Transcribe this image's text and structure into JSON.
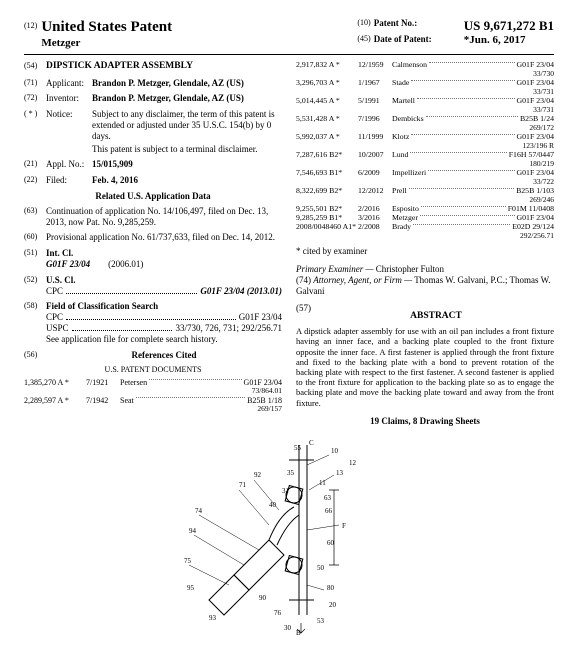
{
  "header": {
    "leftNum": "(12)",
    "title": "United States Patent",
    "name": "Metzger",
    "rNum1": "(10)",
    "rLabel1": "Patent No.:",
    "rVal1": "US 9,671,272 B1",
    "rNum2": "(45)",
    "rLabel2": "Date of Patent:",
    "rVal2": "*Jun. 6, 2017"
  },
  "left": {
    "titleNum": "(54)",
    "title": "DIPSTICK ADAPTER ASSEMBLY",
    "applicantNum": "(71)",
    "applicantLabel": "Applicant:",
    "applicantVal": "Brandon P. Metzger, Glendale, AZ (US)",
    "inventorNum": "(72)",
    "inventorLabel": "Inventor:",
    "inventorVal": "Brandon P. Metzger, Glendale, AZ (US)",
    "noticeNum": "( * )",
    "noticeLabel": "Notice:",
    "noticeVal1": "Subject to any disclaimer, the term of this patent is extended or adjusted under 35 U.S.C. 154(b) by 0 days.",
    "noticeVal2": "This patent is subject to a terminal disclaimer.",
    "applNum": "(21)",
    "applLabel": "Appl. No.:",
    "applVal": "15/015,909",
    "filedNum": "(22)",
    "filedLabel": "Filed:",
    "filedVal": "Feb. 4, 2016",
    "relatedHeader": "Related U.S. Application Data",
    "contNum": "(63)",
    "contVal": "Continuation of application No. 14/106,497, filed on Dec. 13, 2013, now Pat. No. 9,285,259.",
    "provNum": "(60)",
    "provVal": "Provisional application No. 61/737,633, filed on Dec. 14, 2012.",
    "intclNum": "(51)",
    "intclLabel": "Int. Cl.",
    "intclCode": "G01F 23/04",
    "intclYear": "(2006.01)",
    "usclNum": "(52)",
    "usclLabel": "U.S. Cl.",
    "cpcLabel": "CPC",
    "cpcVal": "G01F 23/04 (2013.01)",
    "fcsNum": "(58)",
    "fcsLabel": "Field of Classification Search",
    "fcsCpcLabel": "CPC",
    "fcsCpcVal": "G01F 23/04",
    "fcsUspcLabel": "USPC",
    "fcsUspcVal": "33/730, 726, 731; 292/256.71",
    "fcsNote": "See application file for complete search history.",
    "refNum": "(56)",
    "refLabel": "References Cited",
    "uspd": "U.S. PATENT DOCUMENTS",
    "cits": [
      {
        "a": "1,385,270 A *",
        "c": "7/1921",
        "name": "Petersen",
        "e": "G01F 23/04",
        "sub": "73/864.01"
      },
      {
        "a": "2,289,597 A *",
        "c": "7/1942",
        "name": "Seat",
        "e": "B25B 1/18",
        "sub": "269/157"
      }
    ]
  },
  "right": {
    "cits": [
      {
        "a": "2,917,832 A *",
        "c": "12/1959",
        "name": "Calmenson",
        "e": "G01F 23/04",
        "sub": "33/730"
      },
      {
        "a": "3,296,703 A *",
        "c": "1/1967",
        "name": "Stade",
        "e": "G01F 23/04",
        "sub": "33/731"
      },
      {
        "a": "5,014,445 A *",
        "c": "5/1991",
        "name": "Martell",
        "e": "G01F 23/04",
        "sub": "33/731"
      },
      {
        "a": "5,531,428 A *",
        "c": "7/1996",
        "name": "Dembicks",
        "e": "B25B 1/24",
        "sub": "269/172"
      },
      {
        "a": "5,992,037 A *",
        "c": "11/1999",
        "name": "Klotz",
        "e": "G01F 23/04",
        "sub": "123/196 R"
      },
      {
        "a": "7,287,616 B2*",
        "c": "10/2007",
        "name": "Lund",
        "e": "F16H 57/0447",
        "sub": "180/219"
      },
      {
        "a": "7,546,693 B1*",
        "c": "6/2009",
        "name": "Impellizeri",
        "e": "G01F 23/04",
        "sub": "33/722"
      },
      {
        "a": "8,322,699 B2*",
        "c": "12/2012",
        "name": "Prell",
        "e": "B25B 1/103",
        "sub": "269/246"
      },
      {
        "a": "9,255,501 B2*",
        "c": "2/2016",
        "name": "Esposito",
        "e": "F01M 11/0408",
        "sub": ""
      },
      {
        "a": "9,285,259 B1*",
        "c": "3/2016",
        "name": "Metzger",
        "e": "G01F 23/04",
        "sub": ""
      },
      {
        "a": "2008/0048460 A1*",
        "c": "2/2008",
        "name": "Brady",
        "e": "E02D 29/124",
        "sub": "292/256.71"
      }
    ],
    "citedBy": "* cited by examiner",
    "examinerLabel": "Primary Examiner —",
    "examinerVal": "Christopher Fulton",
    "attorneyNum": "(74)",
    "attorneyLabel": "Attorney, Agent, or Firm —",
    "attorneyVal": "Thomas W. Galvani, P.C.; Thomas W. Galvani",
    "abstractNum": "(57)",
    "abstractTitle": "ABSTRACT",
    "abstract": "A dipstick adapter assembly for use with an oil pan includes a front fixture having an inner face, and a backing plate coupled to the front fixture opposite the inner face. A first fastener is applied through the front fixture and fixed to the backing plate with a bond to prevent rotation of the backing plate with respect to the first fastener. A second fastener is applied to the front fixture for application to the backing plate so as to engage the backing plate and move the backing plate toward and away from the front fixture.",
    "claims": "19 Claims, 8 Drawing Sheets"
  },
  "figure": {
    "labels": [
      "10",
      "11",
      "12",
      "13",
      "20",
      "30",
      "31",
      "35",
      "40",
      "50",
      "53",
      "55",
      "60",
      "63",
      "66",
      "71",
      "74",
      "75",
      "76",
      "80",
      "90",
      "92",
      "93",
      "94",
      "95",
      "B",
      "C",
      "F"
    ]
  }
}
